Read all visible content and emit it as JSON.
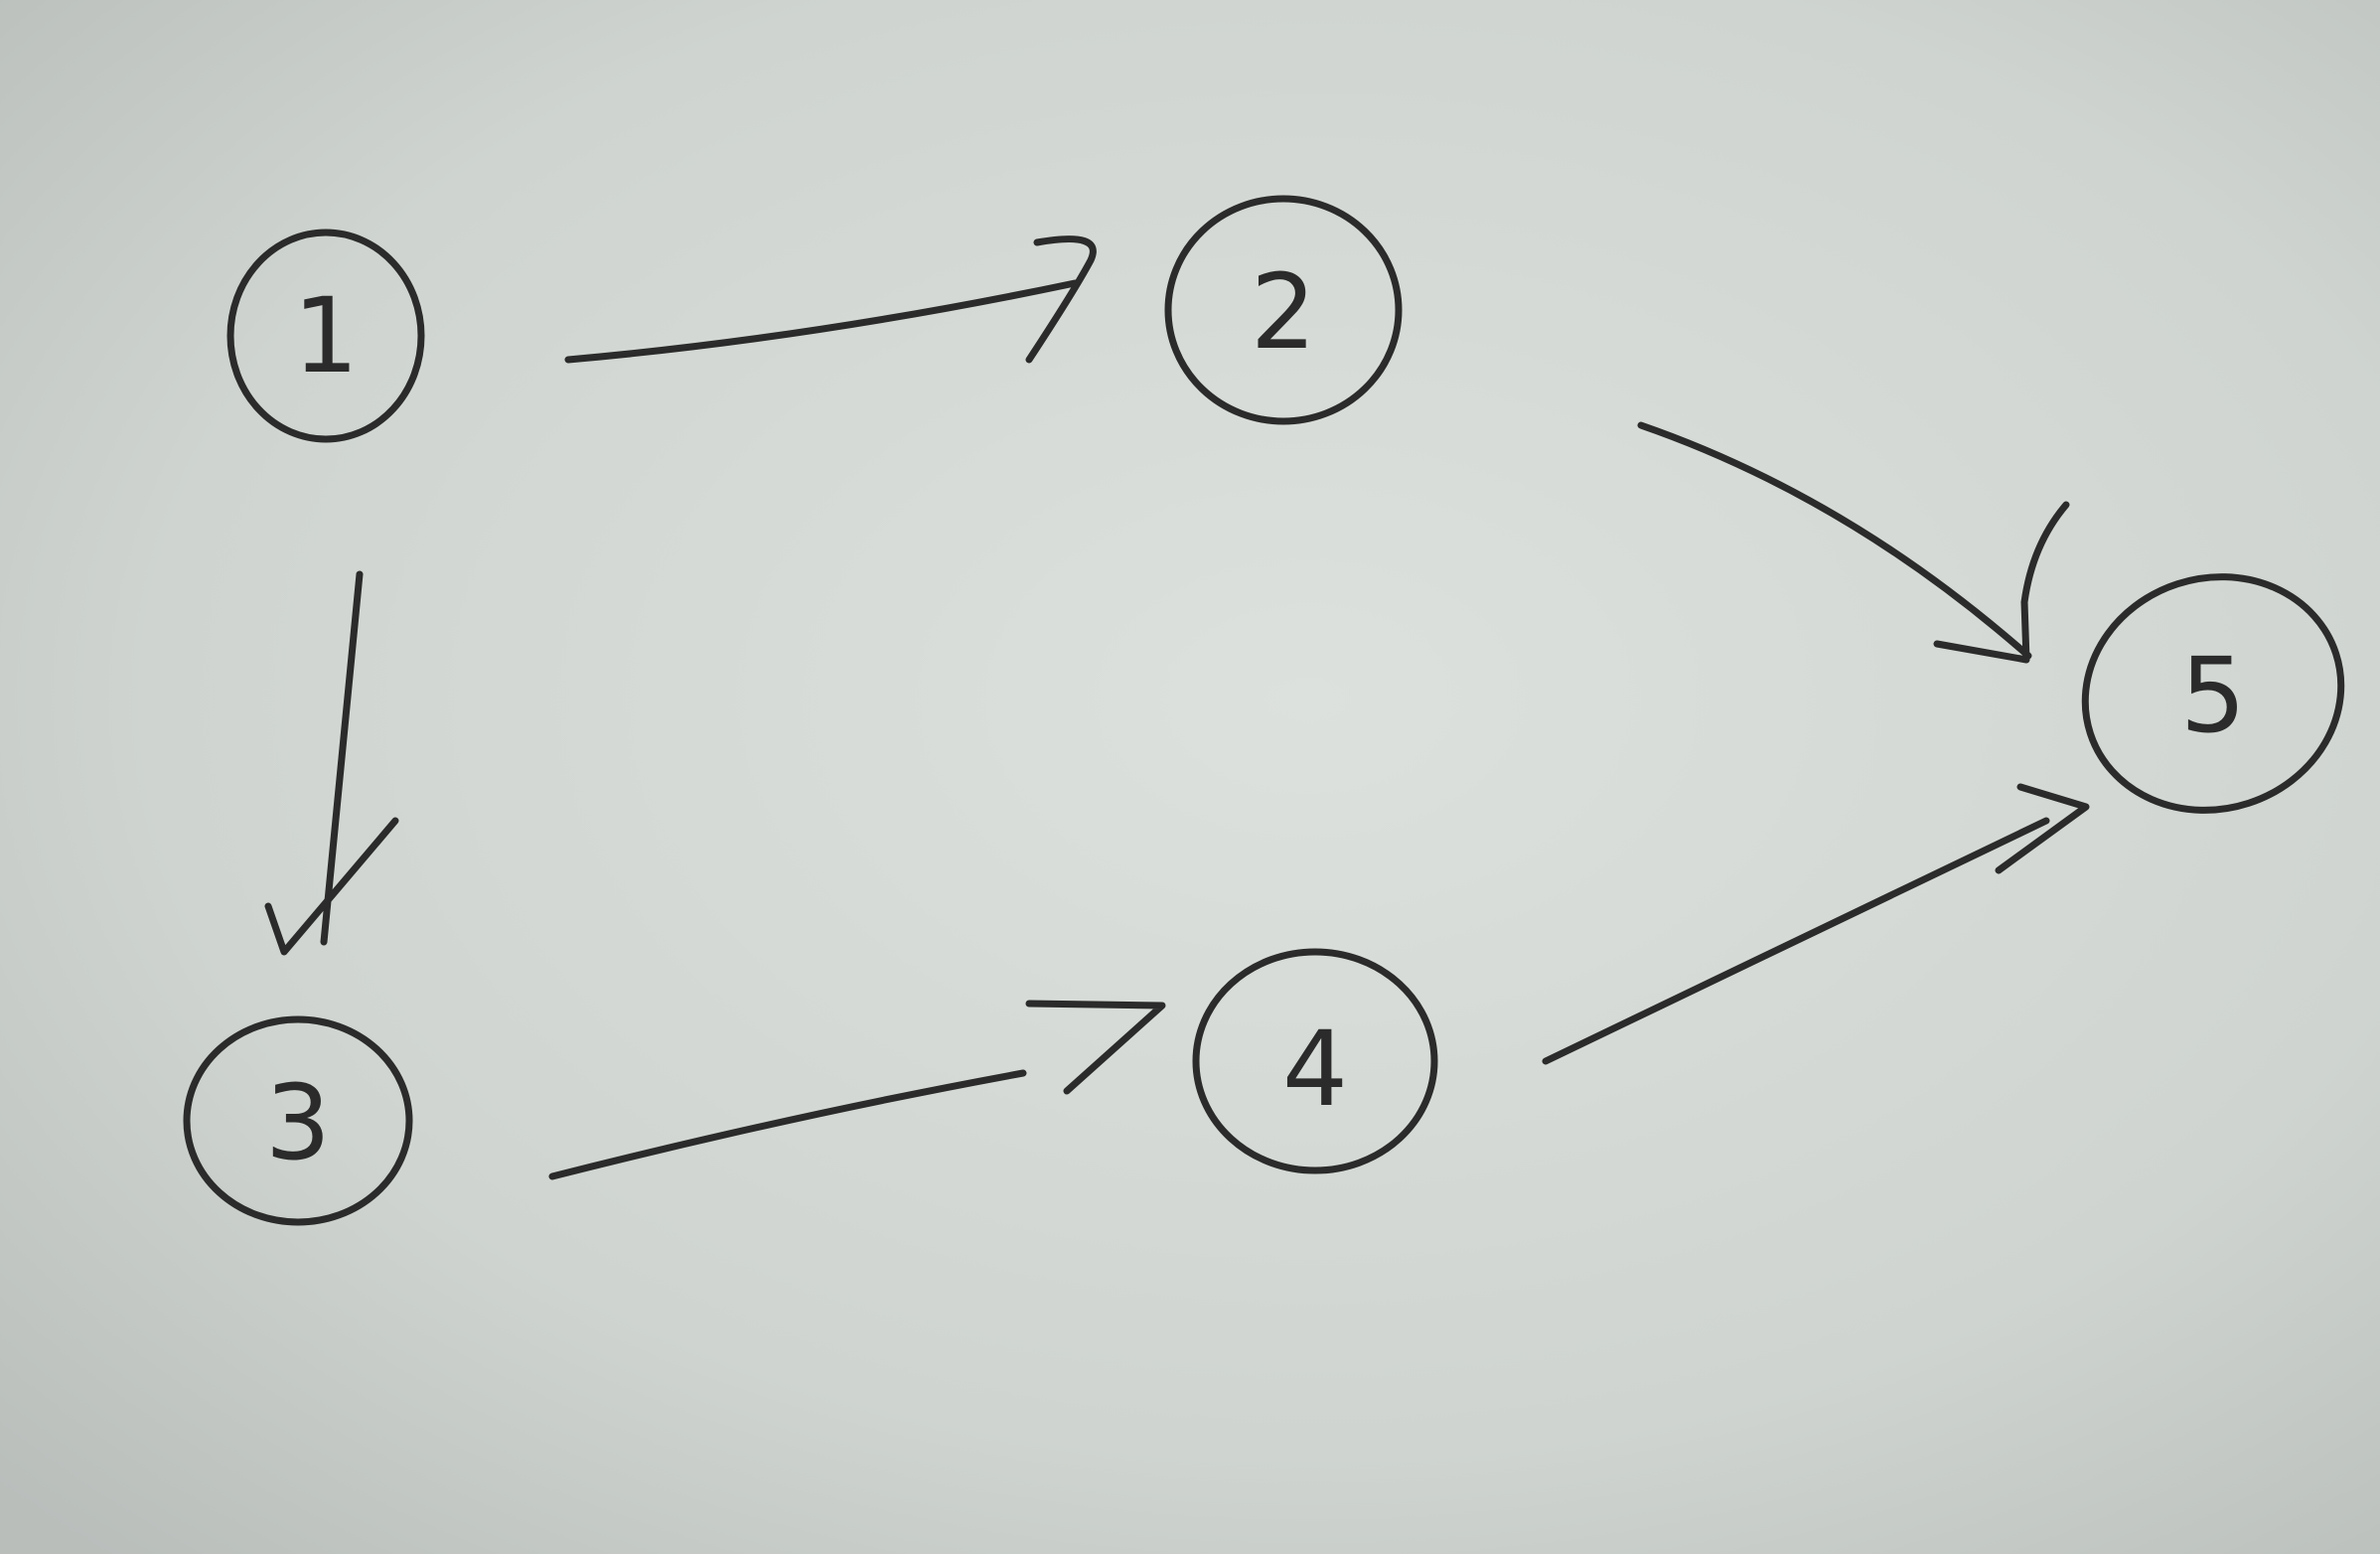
{
  "diagram": {
    "paper_color": "#d3d8d4",
    "ink_color": "#2a2b2a",
    "nodes": [
      {
        "id": "n1",
        "label": "1"
      },
      {
        "id": "n2",
        "label": "2"
      },
      {
        "id": "n3",
        "label": "3"
      },
      {
        "id": "n4",
        "label": "4"
      },
      {
        "id": "n5",
        "label": "5"
      }
    ],
    "edges": [
      {
        "from": "1",
        "to": "2"
      },
      {
        "from": "1",
        "to": "3"
      },
      {
        "from": "2",
        "to": "5"
      },
      {
        "from": "3",
        "to": "4"
      },
      {
        "from": "4",
        "to": "5"
      }
    ]
  }
}
